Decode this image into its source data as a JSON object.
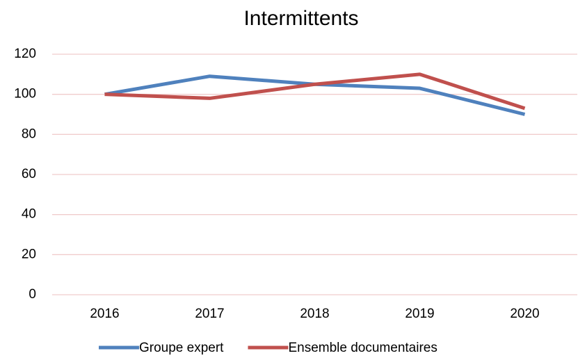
{
  "chart_data": {
    "type": "line",
    "title": "Intermittents",
    "categories": [
      "2016",
      "2017",
      "2018",
      "2019",
      "2020"
    ],
    "series": [
      {
        "name": "Groupe expert",
        "color": "#4f81bd",
        "values": [
          100,
          109,
          105,
          103,
          90
        ]
      },
      {
        "name": "Ensemble documentaires",
        "color": "#c0504d",
        "values": [
          100,
          98,
          105,
          110,
          93
        ]
      }
    ],
    "ylim": [
      0,
      120
    ],
    "yticks": [
      0,
      20,
      40,
      60,
      80,
      100,
      120
    ],
    "grid": true,
    "legend": "bottom"
  }
}
